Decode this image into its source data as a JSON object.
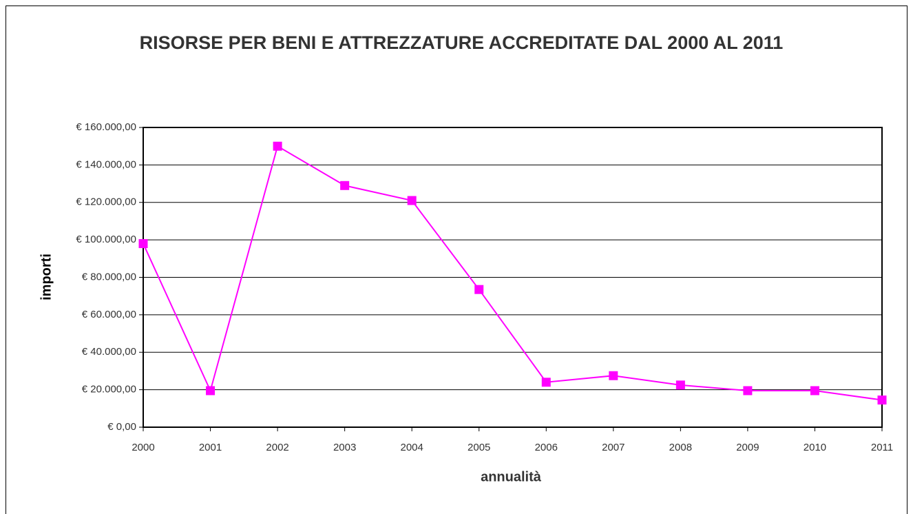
{
  "chart_data": {
    "type": "line",
    "title": "RISORSE PER BENI E ATTREZZATURE ACCREDITATE DAL 2000 AL 2011",
    "xlabel": "annualità",
    "ylabel": "importi",
    "categories": [
      "2000",
      "2001",
      "2002",
      "2003",
      "2004",
      "2005",
      "2006",
      "2007",
      "2008",
      "2009",
      "2010",
      "2011"
    ],
    "series": [
      {
        "color": "#ff00ff",
        "values": [
          98000,
          19500,
          150000,
          129000,
          121000,
          73500,
          24000,
          27500,
          22500,
          19500,
          19500,
          14500
        ]
      }
    ],
    "ylim": [
      0,
      160000
    ],
    "yticks": [
      {
        "value": 0,
        "label": "€ 0,00"
      },
      {
        "value": 20000,
        "label": "€ 20.000,00"
      },
      {
        "value": 40000,
        "label": "€ 40.000,00"
      },
      {
        "value": 60000,
        "label": "€ 60.000,00"
      },
      {
        "value": 80000,
        "label": "€ 80.000,00"
      },
      {
        "value": 100000,
        "label": "€ 100.000,00"
      },
      {
        "value": 120000,
        "label": "€ 120.000,00"
      },
      {
        "value": 140000,
        "label": "€ 140.000,00"
      },
      {
        "value": 160000,
        "label": "€ 160.000,00"
      }
    ],
    "grid": true
  }
}
